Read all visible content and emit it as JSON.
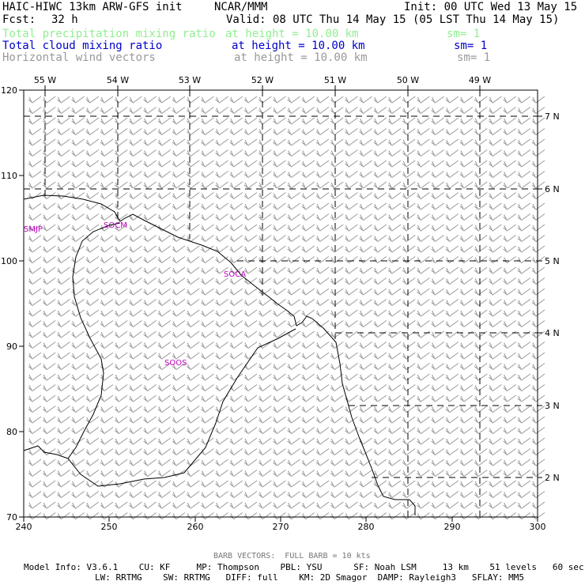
{
  "header": {
    "model_title": "HAIC-HIWC 13km ARW-GFS init",
    "center": "NCAR/MMM",
    "init": "Init: 00 UTC Wed 13 May 15",
    "fcst_label": "Fcst:",
    "fcst_value": "32 h",
    "valid": "Valid: 08 UTC Thu 14 May 15 (05 LST Thu 14 May 15)"
  },
  "fields": [
    {
      "name": "Total precipitation mixing ratio",
      "level": "at height = 10.00 km",
      "sm": "sm= 1",
      "color": "#90ee90"
    },
    {
      "name": "Total cloud mixing ratio",
      "level": "at height = 10.00 km",
      "sm": "sm= 1",
      "color": "#0000cd"
    },
    {
      "name": "Horizontal wind vectors",
      "level": "at height = 10.00 km",
      "sm": "sm= 1",
      "color": "#999999"
    }
  ],
  "axes": {
    "x_ticks": [
      "240",
      "250",
      "260",
      "270",
      "280",
      "290",
      "300"
    ],
    "y_ticks": [
      "70",
      "80",
      "90",
      "100",
      "110",
      "120"
    ],
    "lon_labels": [
      "55 W",
      "54 W",
      "53 W",
      "52 W",
      "51 W",
      "50 W",
      "49 W"
    ],
    "lat_labels": [
      "7 N",
      "6 N",
      "5 N",
      "4 N",
      "3 N",
      "2 N"
    ]
  },
  "stations": [
    "SMJP",
    "SOCM",
    "SOCA",
    "SOOS"
  ],
  "footer": {
    "barb": "BARB VECTORS:  FULL BARB = 10 kts",
    "model_info_1": "Model Info: V3.6.1    CU: KF     MP: Thompson    PBL: YSU      SF: Noah LSM     13 km    51 levels   60 sec",
    "model_info_2": "LW: RRTMG    SW: RRTMG   DIFF: full    KM: 2D Smagor  DAMP: Rayleigh3   SFLAY: MM5"
  },
  "colors": {
    "coast": "#000000",
    "grid": "#000000",
    "barb": "#999999",
    "station": "#c000c0"
  }
}
